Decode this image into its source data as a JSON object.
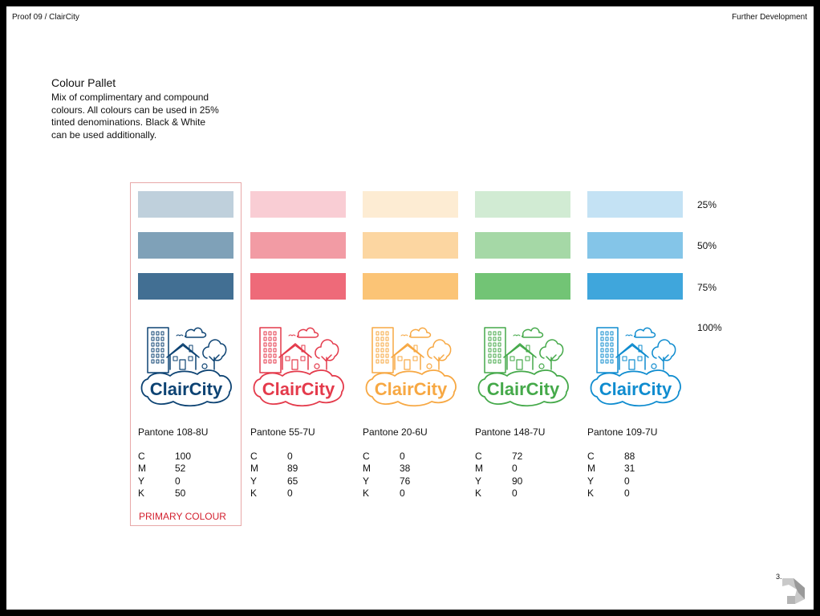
{
  "header": {
    "left": "Proof 09 / ClairCity",
    "right": "Further Development"
  },
  "section": {
    "title": "Colour Pallet",
    "description": "Mix of complimentary and compound colours. All colours can be used in 25% tinted denominations. Black & White can be used additionally."
  },
  "tint_labels": [
    "25%",
    "50%",
    "75%",
    "100%"
  ],
  "logo_text": "ClairCity",
  "colours": [
    {
      "pantone": "Pantone 108-8U",
      "hex": "#0d4373",
      "swatches": [
        "#bfd0dc",
        "#7fa1b8",
        "#426f93"
      ],
      "cmyk": {
        "C": "100",
        "M": "52",
        "Y": "0",
        "K": "50"
      }
    },
    {
      "pantone": "Pantone 55-7U",
      "hex": "#e43a4b",
      "swatches": [
        "#f9cdd4",
        "#f29ba4",
        "#ee6a79"
      ],
      "cmyk": {
        "C": "0",
        "M": "89",
        "Y": "65",
        "K": "0"
      }
    },
    {
      "pantone": "Pantone 20-6U",
      "hex": "#f7a843",
      "swatches": [
        "#fdecd3",
        "#fcd6a1",
        "#fbc476"
      ],
      "cmyk": {
        "C": "0",
        "M": "38",
        "Y": "76",
        "K": "0"
      }
    },
    {
      "pantone": "Pantone 148-7U",
      "hex": "#45a94a",
      "swatches": [
        "#d1ebd3",
        "#a5d8a6",
        "#72c475"
      ],
      "cmyk": {
        "C": "72",
        "M": "0",
        "Y": "90",
        "K": "0"
      }
    },
    {
      "pantone": "Pantone 109-7U",
      "hex": "#0f8ccf",
      "swatches": [
        "#c4e2f4",
        "#84c5e8",
        "#3fa6dc"
      ],
      "cmyk": {
        "C": "88",
        "M": "31",
        "Y": "0",
        "K": "0"
      }
    }
  ],
  "primary_label": "PRIMARY COLOUR",
  "page_number": "3."
}
